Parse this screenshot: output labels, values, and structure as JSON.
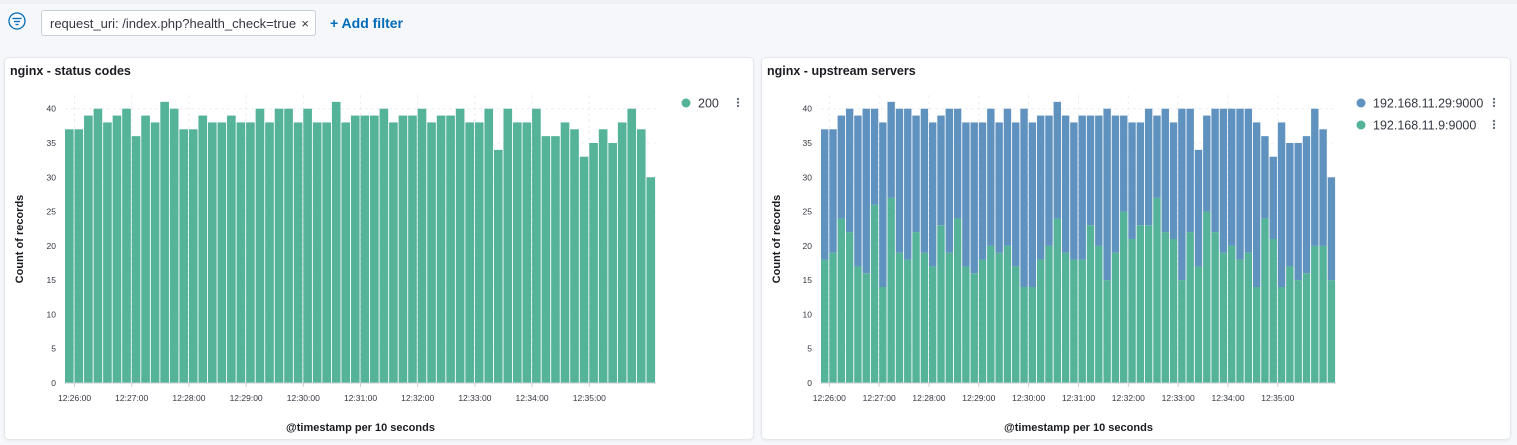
{
  "filter_bar": {
    "filter_label": "request_uri: /index.php?health_check=true",
    "remove_symbol": "×",
    "add_filter_label": "+ Add filter",
    "filter_icon": "filter-icon",
    "accent_color": "#006bb8"
  },
  "chart_data": [
    {
      "type": "bar",
      "title": "nginx - status codes",
      "xlabel": "@timestamp per 10 seconds",
      "ylabel": "Count of records",
      "ylim": [
        0,
        42
      ],
      "yticks": [
        0,
        5,
        10,
        15,
        20,
        25,
        30,
        35,
        40
      ],
      "x_start": "12:25:50",
      "x_interval_seconds": 10,
      "xticks": [
        "12:26:00",
        "12:27:00",
        "12:28:00",
        "12:29:00",
        "12:30:00",
        "12:31:00",
        "12:32:00",
        "12:33:00",
        "12:34:00",
        "12:35:00"
      ],
      "legend_position": "top-right",
      "grid": true,
      "series": [
        {
          "name": "200",
          "color": "#54b399",
          "values": [
            37,
            37,
            39,
            40,
            38,
            39,
            40,
            36,
            39,
            38,
            41,
            40,
            37,
            37,
            39,
            38,
            38,
            39,
            38,
            38,
            40,
            38,
            40,
            40,
            38,
            40,
            38,
            38,
            41,
            38,
            39,
            39,
            39,
            40,
            38,
            39,
            39,
            40,
            38,
            39,
            39,
            40,
            38,
            38,
            40,
            34,
            40,
            38,
            38,
            40,
            36,
            36,
            38,
            37,
            33,
            35,
            37,
            35,
            38,
            40,
            37,
            30
          ]
        }
      ]
    },
    {
      "type": "bar",
      "stacked": true,
      "title": "nginx - upstream servers",
      "xlabel": "@timestamp per 10 seconds",
      "ylabel": "Count of records",
      "ylim": [
        0,
        42
      ],
      "yticks": [
        0,
        5,
        10,
        15,
        20,
        25,
        30,
        35,
        40
      ],
      "x_start": "12:25:50",
      "x_interval_seconds": 10,
      "xticks": [
        "12:26:00",
        "12:27:00",
        "12:28:00",
        "12:29:00",
        "12:30:00",
        "12:31:00",
        "12:32:00",
        "12:33:00",
        "12:34:00",
        "12:35:00"
      ],
      "legend_position": "top-right",
      "grid": true,
      "series": [
        {
          "name": "192.168.11.9:9000",
          "color": "#54b399",
          "values": [
            18,
            19,
            24,
            22,
            17,
            16,
            26,
            14,
            27,
            19,
            18,
            22,
            19,
            17,
            23,
            19,
            24,
            17,
            16,
            18,
            20,
            19,
            20,
            17,
            14,
            14,
            18,
            20,
            24,
            19,
            18,
            18,
            23,
            20,
            15,
            19,
            25,
            21,
            23,
            23,
            27,
            22,
            21,
            15,
            22,
            17,
            25,
            22,
            19,
            20,
            18,
            19,
            14,
            24,
            21,
            14,
            17,
            15,
            16,
            20,
            20,
            15
          ]
        },
        {
          "name": "192.168.11.29:9000",
          "color": "#6092c0",
          "values": [
            19,
            18,
            15,
            18,
            22,
            24,
            14,
            24,
            14,
            21,
            22,
            17,
            21,
            21,
            16,
            21,
            16,
            21,
            22,
            20,
            20,
            19,
            20,
            21,
            26,
            24,
            21,
            19,
            17,
            20,
            20,
            21,
            16,
            19,
            25,
            20,
            14,
            17,
            15,
            17,
            12,
            18,
            17,
            25,
            18,
            17,
            14,
            18,
            21,
            20,
            22,
            21,
            24,
            12,
            12,
            24,
            18,
            20,
            20,
            20,
            17,
            15
          ]
        }
      ]
    }
  ]
}
